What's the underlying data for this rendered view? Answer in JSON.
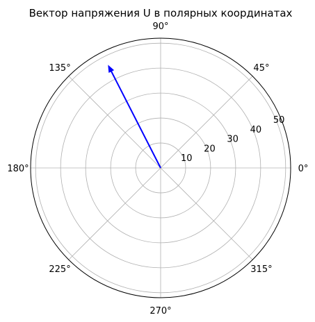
{
  "chart_data": {
    "type": "polar",
    "title": "Вектор напряжения U в полярных координатах",
    "angular_ticks": [
      "0°",
      "45°",
      "90°",
      "135°",
      "180°",
      "225°",
      "270°",
      "315°"
    ],
    "angular_tick_values": [
      0,
      45,
      90,
      135,
      180,
      225,
      270,
      315
    ],
    "radial_ticks": [
      "10",
      "20",
      "30",
      "40",
      "50"
    ],
    "radial_tick_values": [
      10,
      20,
      30,
      40,
      50
    ],
    "rlim": [
      0,
      52
    ],
    "rlabel_angle_deg": 22.5,
    "grid": true,
    "series": [
      {
        "vector": {
          "angle_deg": 117,
          "magnitude": 46
        },
        "color": "#0000ff"
      }
    ]
  }
}
